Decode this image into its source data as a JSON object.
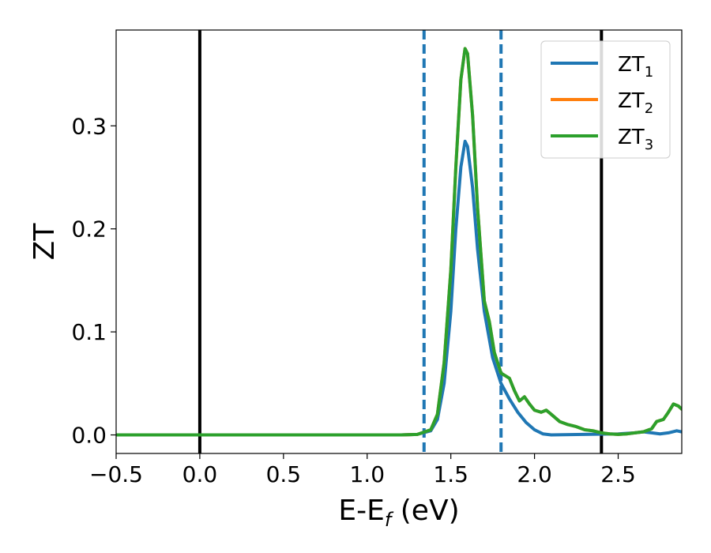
{
  "chart_data": {
    "type": "line",
    "xlabel": "E-E",
    "xlabel_sub": "f",
    "xlabel_unit": " (eV)",
    "ylabel": "ZT",
    "xlim": [
      -0.5,
      2.88
    ],
    "ylim": [
      -0.018,
      0.393
    ],
    "x_ticks": [
      -0.5,
      0.0,
      0.5,
      1.0,
      1.5,
      2.0,
      2.5
    ],
    "x_tick_labels": [
      "−0.5",
      "0.0",
      "0.5",
      "1.0",
      "1.5",
      "2.0",
      "2.5"
    ],
    "y_ticks": [
      0.0,
      0.1,
      0.2,
      0.3
    ],
    "y_tick_labels": [
      "0.0",
      "0.1",
      "0.2",
      "0.3"
    ],
    "grid": false,
    "legend_position": "top-right",
    "vlines": [
      {
        "x": 0.0,
        "color": "#000000",
        "style": "solid"
      },
      {
        "x": 2.4,
        "color": "#000000",
        "style": "solid"
      },
      {
        "x": 1.34,
        "color": "#1f77b4",
        "style": "dashed"
      },
      {
        "x": 1.8,
        "color": "#1f77b4",
        "style": "dashed"
      }
    ],
    "series": [
      {
        "name": "ZT",
        "sub": "1",
        "color": "#1f77b4",
        "points": [
          [
            -0.5,
            0
          ],
          [
            1.2,
            0
          ],
          [
            1.3,
            0.0005
          ],
          [
            1.38,
            0.004
          ],
          [
            1.42,
            0.015
          ],
          [
            1.46,
            0.05
          ],
          [
            1.5,
            0.12
          ],
          [
            1.53,
            0.2
          ],
          [
            1.56,
            0.26
          ],
          [
            1.585,
            0.285
          ],
          [
            1.6,
            0.28
          ],
          [
            1.63,
            0.24
          ],
          [
            1.66,
            0.18
          ],
          [
            1.7,
            0.12
          ],
          [
            1.75,
            0.075
          ],
          [
            1.8,
            0.05
          ],
          [
            1.85,
            0.035
          ],
          [
            1.9,
            0.022
          ],
          [
            1.95,
            0.012
          ],
          [
            2.0,
            0.005
          ],
          [
            2.05,
            0.001
          ],
          [
            2.1,
            0
          ],
          [
            2.5,
            0.001
          ],
          [
            2.6,
            0.002
          ],
          [
            2.65,
            0.003
          ],
          [
            2.7,
            0.002
          ],
          [
            2.75,
            0.001
          ],
          [
            2.8,
            0.002
          ],
          [
            2.85,
            0.004
          ],
          [
            2.88,
            0.003
          ]
        ]
      },
      {
        "name": "ZT",
        "sub": "2",
        "color": "#ff7f0e",
        "points": [
          [
            -0.5,
            0
          ],
          [
            1.2,
            0
          ],
          [
            1.3,
            0.0005
          ],
          [
            1.38,
            0.005
          ],
          [
            1.42,
            0.02
          ],
          [
            1.46,
            0.07
          ],
          [
            1.5,
            0.16
          ],
          [
            1.53,
            0.26
          ],
          [
            1.56,
            0.345
          ],
          [
            1.585,
            0.375
          ],
          [
            1.6,
            0.37
          ],
          [
            1.63,
            0.31
          ],
          [
            1.66,
            0.22
          ],
          [
            1.7,
            0.13
          ],
          [
            1.73,
            0.11
          ],
          [
            1.76,
            0.08
          ],
          [
            1.8,
            0.06
          ],
          [
            1.83,
            0.057
          ],
          [
            1.85,
            0.055
          ],
          [
            1.88,
            0.043
          ],
          [
            1.91,
            0.033
          ],
          [
            1.94,
            0.037
          ],
          [
            1.97,
            0.03
          ],
          [
            2.0,
            0.024
          ],
          [
            2.04,
            0.022
          ],
          [
            2.07,
            0.024
          ],
          [
            2.1,
            0.02
          ],
          [
            2.15,
            0.013
          ],
          [
            2.2,
            0.01
          ],
          [
            2.25,
            0.008
          ],
          [
            2.3,
            0.005
          ],
          [
            2.35,
            0.004
          ],
          [
            2.4,
            0.002
          ],
          [
            2.45,
            0.001
          ],
          [
            2.5,
            0.0005
          ],
          [
            2.55,
            0.001
          ],
          [
            2.6,
            0.002
          ],
          [
            2.65,
            0.003
          ],
          [
            2.7,
            0.006
          ],
          [
            2.73,
            0.013
          ],
          [
            2.77,
            0.015
          ],
          [
            2.8,
            0.022
          ],
          [
            2.83,
            0.03
          ],
          [
            2.86,
            0.028
          ],
          [
            2.88,
            0.025
          ]
        ]
      },
      {
        "name": "ZT",
        "sub": "3",
        "color": "#2ca02c",
        "points": [
          [
            -0.5,
            0
          ],
          [
            1.2,
            0
          ],
          [
            1.3,
            0.0005
          ],
          [
            1.38,
            0.005
          ],
          [
            1.42,
            0.02
          ],
          [
            1.46,
            0.07
          ],
          [
            1.5,
            0.16
          ],
          [
            1.53,
            0.26
          ],
          [
            1.56,
            0.345
          ],
          [
            1.585,
            0.375
          ],
          [
            1.6,
            0.37
          ],
          [
            1.63,
            0.31
          ],
          [
            1.66,
            0.22
          ],
          [
            1.7,
            0.13
          ],
          [
            1.73,
            0.11
          ],
          [
            1.76,
            0.08
          ],
          [
            1.8,
            0.06
          ],
          [
            1.83,
            0.057
          ],
          [
            1.85,
            0.055
          ],
          [
            1.88,
            0.043
          ],
          [
            1.91,
            0.033
          ],
          [
            1.94,
            0.037
          ],
          [
            1.97,
            0.03
          ],
          [
            2.0,
            0.024
          ],
          [
            2.04,
            0.022
          ],
          [
            2.07,
            0.024
          ],
          [
            2.1,
            0.02
          ],
          [
            2.15,
            0.013
          ],
          [
            2.2,
            0.01
          ],
          [
            2.25,
            0.008
          ],
          [
            2.3,
            0.005
          ],
          [
            2.35,
            0.004
          ],
          [
            2.4,
            0.002
          ],
          [
            2.45,
            0.001
          ],
          [
            2.5,
            0.0005
          ],
          [
            2.55,
            0.001
          ],
          [
            2.6,
            0.002
          ],
          [
            2.65,
            0.003
          ],
          [
            2.7,
            0.006
          ],
          [
            2.73,
            0.013
          ],
          [
            2.77,
            0.015
          ],
          [
            2.8,
            0.022
          ],
          [
            2.83,
            0.03
          ],
          [
            2.86,
            0.028
          ],
          [
            2.88,
            0.025
          ]
        ]
      }
    ]
  }
}
